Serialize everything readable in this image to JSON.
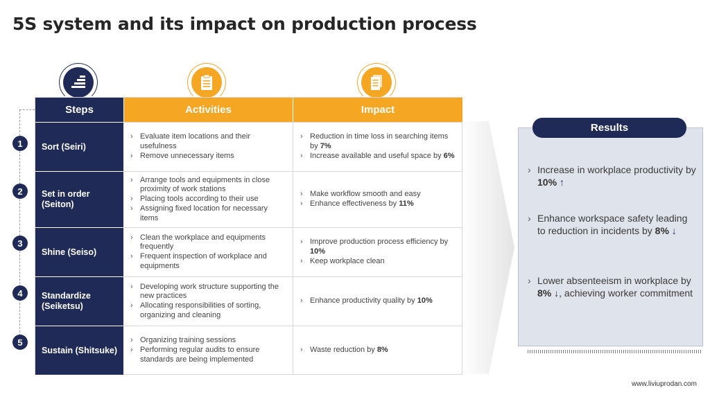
{
  "title": "5S system and its impact on production process",
  "colors": {
    "navy": "#1f2a56",
    "orange": "#f5a623",
    "panel": "#dfe3ec"
  },
  "icons": {
    "steps": "stairs-icon",
    "activities": "clipboard-icon",
    "impact": "document-icon"
  },
  "table": {
    "headers": {
      "steps": "Steps",
      "activities": "Activities",
      "impact": "Impact"
    },
    "rows": [
      {
        "num": "1",
        "step": "Sort (Seiri)",
        "activities": [
          "Evaluate item locations and their usefulness",
          "Remove unnecessary items"
        ],
        "impact": [
          {
            "pre": "Reduction in time loss in searching items by ",
            "bold": "7%"
          },
          {
            "pre": "Increase available and useful space by ",
            "bold": "6%"
          }
        ]
      },
      {
        "num": "2",
        "step": "Set in order (Seiton)",
        "activities": [
          "Arrange tools and equipments in close proximity of work stations",
          "Placing tools according to their use",
          "Assigning fixed location for necessary items"
        ],
        "impact": [
          {
            "pre": "Make workflow smooth and easy",
            "bold": ""
          },
          {
            "pre": "Enhance effectiveness by ",
            "bold": "11%"
          }
        ]
      },
      {
        "num": "3",
        "step": "Shine (Seiso)",
        "activities": [
          "Clean the workplace and equipments frequently",
          "Frequent inspection of workplace and equipments"
        ],
        "impact": [
          {
            "pre": "Improve production process efficiency by ",
            "bold": "10%"
          },
          {
            "pre": "Keep workplace clean",
            "bold": ""
          }
        ]
      },
      {
        "num": "4",
        "step": "Standardize (Seiketsu)",
        "activities": [
          "Developing work structure supporting the new practices",
          "Allocating responsibilities of sorting, organizing and cleaning"
        ],
        "impact": [
          {
            "pre": "Enhance productivity quality by ",
            "bold": "10%"
          }
        ]
      },
      {
        "num": "5",
        "step": "Sustain (Shitsuke)",
        "activities": [
          "Organizing training sessions",
          "Performing regular audits to ensure standards are being implemented"
        ],
        "impact": [
          {
            "pre": "Waste reduction by ",
            "bold": "8%"
          }
        ]
      }
    ]
  },
  "results": {
    "header": "Results",
    "items": [
      {
        "pre": "Increase in workplace productivity by ",
        "bold": "10%",
        "arrow": "↑",
        "post": ""
      },
      {
        "pre": "Enhance workspace safety leading to reduction in incidents by ",
        "bold": "8%",
        "arrow": "↓",
        "post": ""
      },
      {
        "pre": "Lower absenteeism in workplace by ",
        "bold": "8%",
        "arrow": "↓",
        "post": ", achieving worker commitment"
      }
    ]
  },
  "footer": "www.liviuprodan.com"
}
